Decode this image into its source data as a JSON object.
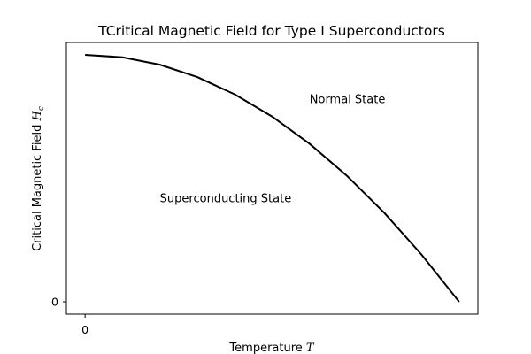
{
  "chart_data": {
    "type": "line",
    "title": "TCritical Magnetic Field for Type I Superconductors",
    "xlabel_prefix": "Temperature ",
    "xlabel_var": "T",
    "ylabel_prefix": "Critical Magnetic Field ",
    "ylabel_var": "H",
    "ylabel_sub": "c",
    "x_ticks": [
      {
        "value": 0,
        "label": "0"
      }
    ],
    "y_ticks": [
      {
        "value": 0,
        "label": "0"
      }
    ],
    "xlim": [
      -0.05,
      1.05
    ],
    "ylim": [
      -0.05,
      1.05
    ],
    "grid": false,
    "series": [
      {
        "color": "#000000",
        "x": [
          0,
          0.1,
          0.2,
          0.3,
          0.4,
          0.5,
          0.6,
          0.7,
          0.8,
          0.9,
          1.0
        ],
        "y": [
          1.0,
          0.99,
          0.96,
          0.91,
          0.84,
          0.75,
          0.64,
          0.51,
          0.36,
          0.19,
          0.0
        ]
      }
    ],
    "annotations": [
      {
        "text": "Normal State",
        "x": 0.6,
        "y": 0.82
      },
      {
        "text": "Superconducting State",
        "x": 0.2,
        "y": 0.42
      }
    ]
  }
}
